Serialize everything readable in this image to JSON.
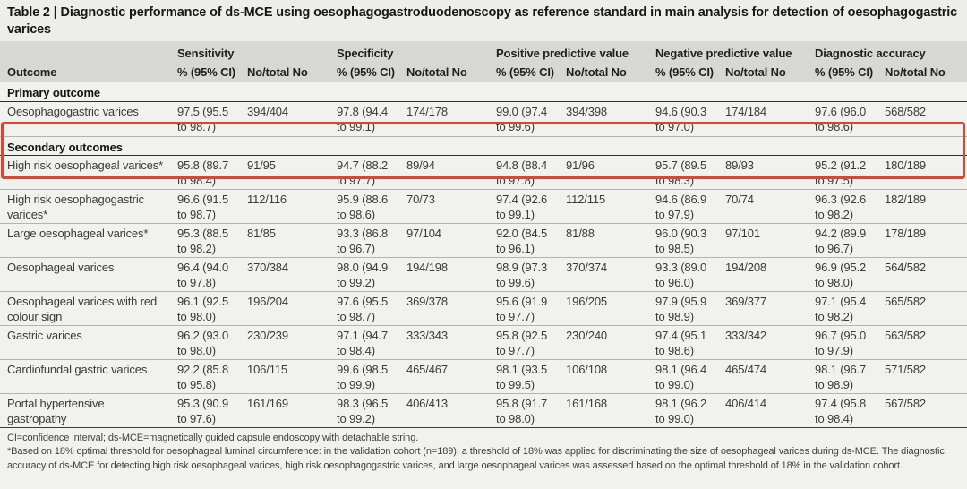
{
  "title": "Table 2 | Diagnostic performance of ds-MCE using oesophagogastroduodenoscopy as reference standard in main analysis for detection of oesophagogastric varices",
  "colors": {
    "accent_red": "#e0442f",
    "header_bg": "#d7d7d5",
    "body_bg": "#f1f1ef",
    "title_bg": "#ededeb"
  },
  "table": {
    "outcome_header": "Outcome",
    "groups": [
      {
        "label": "Sensitivity"
      },
      {
        "label": "Specificity"
      },
      {
        "label": "Positive predictive value"
      },
      {
        "label": "Negative predictive value"
      },
      {
        "label": "Diagnostic accuracy"
      }
    ],
    "subcolumns": [
      "% (95% CI)",
      "No/total No"
    ],
    "sections": [
      {
        "label": "Primary outcome",
        "highlighted": true,
        "rows": [
          {
            "outcome": "Oesophagogastric varices",
            "values": [
              "97.5 (95.5 to 98.7)",
              "394/404",
              "97.8 (94.4 to 99.1)",
              "174/178",
              "99.0 (97.4 to 99.6)",
              "394/398",
              "94.6 (90.3 to 97.0)",
              "174/184",
              "97.6 (96.0 to 98.6)",
              "568/582"
            ]
          }
        ]
      },
      {
        "label": "Secondary outcomes",
        "highlighted": false,
        "rows": [
          {
            "outcome": "High risk oesophageal varices*",
            "values": [
              "95.8 (89.7 to 98.4)",
              "91/95",
              "94.7 (88.2 to 97.7)",
              "89/94",
              "94.8 (88.4 to 97.8)",
              "91/96",
              "95.7 (89.5 to 98.3)",
              "89/93",
              "95.2 (91.2 to 97.5)",
              "180/189"
            ]
          },
          {
            "outcome": "High risk oesophagogastric varices*",
            "values": [
              "96.6 (91.5 to 98.7)",
              "112/116",
              "95.9 (88.6 to 98.6)",
              "70/73",
              "97.4 (92.6 to 99.1)",
              "112/115",
              "94.6 (86.9 to 97.9)",
              "70/74",
              "96.3 (92.6 to 98.2)",
              "182/189"
            ]
          },
          {
            "outcome": "Large oesophageal varices*",
            "values": [
              "95.3 (88.5 to 98.2)",
              "81/85",
              "93.3 (86.8 to 96.7)",
              "97/104",
              "92.0 (84.5 to 96.1)",
              "81/88",
              "96.0 (90.3 to 98.5)",
              "97/101",
              "94.2 (89.9 to 96.7)",
              "178/189"
            ]
          },
          {
            "outcome": "Oesophageal varices",
            "values": [
              "96.4 (94.0 to 97.8)",
              "370/384",
              "98.0 (94.9 to 99.2)",
              "194/198",
              "98.9 (97.3 to 99.6)",
              "370/374",
              "93.3 (89.0 to 96.0)",
              "194/208",
              "96.9 (95.2 to 98.0)",
              "564/582"
            ]
          },
          {
            "outcome": "Oesophageal varices with red colour sign",
            "values": [
              "96.1 (92.5 to 98.0)",
              "196/204",
              "97.6 (95.5 to 98.7)",
              "369/378",
              "95.6 (91.9 to 97.7)",
              "196/205",
              "97.9 (95.9 to 98.9)",
              "369/377",
              "97.1 (95.4 to 98.2)",
              "565/582"
            ]
          },
          {
            "outcome": "Gastric varices",
            "values": [
              "96.2 (93.0 to 98.0)",
              "230/239",
              "97.1 (94.7 to 98.4)",
              "333/343",
              "95.8 (92.5 to 97.7)",
              "230/240",
              "97.4 (95.1 to 98.6)",
              "333/342",
              "96.7 (95.0 to 97.9)",
              "563/582"
            ]
          },
          {
            "outcome": "Cardiofundal gastric varices",
            "values": [
              "92.2 (85.8 to 95.8)",
              "106/115",
              "99.6 (98.5 to 99.9)",
              "465/467",
              "98.1 (93.5 to 99.5)",
              "106/108",
              "98.1 (96.4 to 99.0)",
              "465/474",
              "98.1 (96.7 to 98.9)",
              "571/582"
            ]
          },
          {
            "outcome": "Portal hypertensive gastropathy",
            "values": [
              "95.3 (90.9 to 97.6)",
              "161/169",
              "98.3 (96.5 to 99.2)",
              "406/413",
              "95.8 (91.7 to 98.0)",
              "161/168",
              "98.1 (96.2 to 99.0)",
              "406/414",
              "97.4 (95.8 to 98.4)",
              "567/582"
            ]
          }
        ]
      }
    ]
  },
  "footnotes": [
    "CI=confidence interval; ds-MCE=magnetically guided capsule endoscopy with detachable string.",
    "*Based on 18% optimal threshold for oesophageal luminal circumference: in the validation cohort (n=189), a threshold of 18% was applied for discriminating the size of oesophageal varices during ds-MCE. The diagnostic accuracy of ds-MCE for detecting high risk oesophageal varices, high risk oesophagogastric varices, and large oesophageal varices was assessed based on the optimal threshold of 18% in the validation cohort."
  ]
}
